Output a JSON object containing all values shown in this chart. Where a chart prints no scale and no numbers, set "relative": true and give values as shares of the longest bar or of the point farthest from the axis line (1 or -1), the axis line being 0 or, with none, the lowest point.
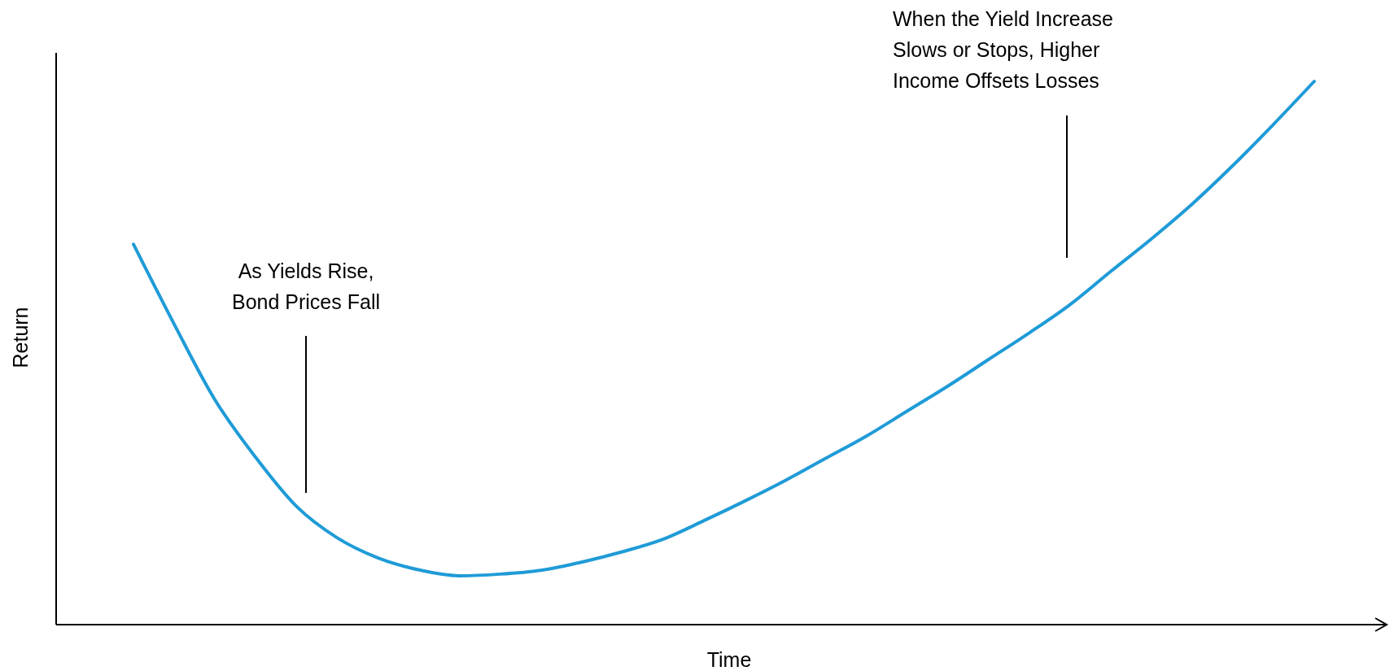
{
  "chart_data": {
    "type": "line",
    "relative": true,
    "xlabel": "Time",
    "ylabel": "Return",
    "marker": "none",
    "line_style": "solid",
    "categories": [
      null,
      null,
      null,
      null,
      null,
      null,
      null,
      null,
      null,
      null,
      null,
      null,
      null,
      null,
      null,
      null,
      null,
      null,
      null,
      null,
      null,
      null,
      null,
      null,
      null,
      null,
      null,
      null,
      null,
      null
    ],
    "series": [
      {
        "color": "#1f9bd7",
        "values": [
          0.7,
          0.553,
          0.414,
          0.308,
          0.218,
          0.16,
          0.123,
          0.101,
          0.09,
          0.093,
          0.1,
          0.115,
          0.134,
          0.157,
          0.191,
          0.227,
          0.265,
          0.306,
          0.347,
          0.393,
          0.439,
          0.488,
          0.537,
          0.589,
          0.65,
          0.71,
          0.774,
          0.845,
          0.921,
          1.0
        ]
      }
    ],
    "annotations": [
      "As Yields Rise,\nBond Prices Fall",
      "When the Yield Increase\nSlows or Stops, Higher\nIncome Offsets Losses"
    ]
  }
}
